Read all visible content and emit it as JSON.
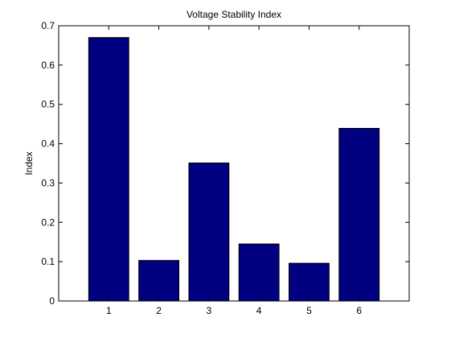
{
  "chart_data": {
    "type": "bar",
    "title": "Voltage Stability Index",
    "xlabel": "",
    "ylabel": "Index",
    "categories": [
      "1",
      "2",
      "3",
      "4",
      "5",
      "6"
    ],
    "values": [
      0.67,
      0.103,
      0.351,
      0.145,
      0.096,
      0.439
    ],
    "ylim": [
      0,
      0.7
    ],
    "xlim": [
      0,
      7
    ],
    "yticks": [
      "0",
      "0.1",
      "0.2",
      "0.3",
      "0.4",
      "0.5",
      "0.6",
      "0.7"
    ],
    "grid": false,
    "bar_color": "#000080",
    "bar_edge_color": "#000000"
  }
}
